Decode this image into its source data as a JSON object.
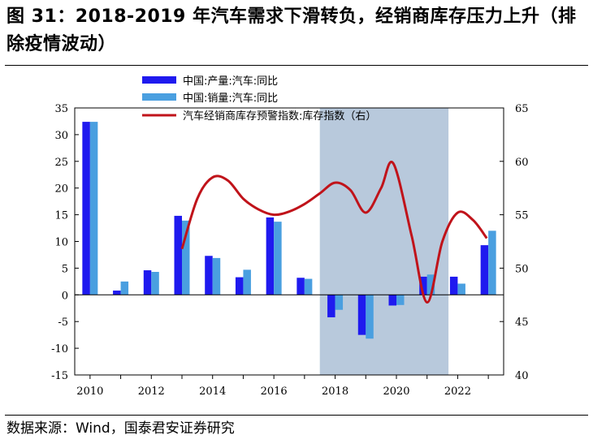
{
  "title": "图 31：2018-2019 年汽车需求下滑转负，经销商库存压力上升（排除疫情波动）",
  "source": "数据来源：Wind，国泰君安证券研究",
  "colors": {
    "production": "#1f1aef",
    "sales": "#4a9fe0",
    "inventory": "#c0131a",
    "shade": "#b8c9dc"
  },
  "chart_data": {
    "type": "bar",
    "categories": [
      "2010",
      "2011",
      "2012",
      "2013",
      "2014",
      "2015",
      "2016",
      "2017",
      "2018",
      "2019",
      "2020",
      "2021",
      "2022",
      "2023"
    ],
    "x_tick_labels": [
      "2010",
      "2012",
      "2014",
      "2016",
      "2018",
      "2020",
      "2022"
    ],
    "left_axis": {
      "ylim": [
        -15,
        35
      ],
      "ticks": [
        "35",
        "30",
        "25",
        "20",
        "15",
        "10",
        "5",
        "0",
        "-5",
        "-10",
        "-15"
      ]
    },
    "right_axis": {
      "ylim": [
        40,
        65
      ],
      "ticks": [
        "65",
        "60",
        "55",
        "50",
        "45",
        "40"
      ]
    },
    "series": [
      {
        "name": "中国:产量:汽车:同比",
        "type": "bar",
        "axis": "left",
        "values": [
          32.4,
          0.8,
          4.6,
          14.8,
          7.3,
          3.3,
          14.5,
          3.2,
          -4.2,
          -7.5,
          -2.0,
          3.4,
          3.4,
          9.3
        ]
      },
      {
        "name": "中国:销量:汽车:同比",
        "type": "bar",
        "axis": "left",
        "values": [
          32.4,
          2.5,
          4.3,
          13.9,
          6.9,
          4.7,
          13.7,
          3.0,
          -2.8,
          -8.2,
          -1.9,
          3.8,
          2.1,
          12.0
        ]
      },
      {
        "name": "汽车经销商库存预警指数:库存指数（右）",
        "type": "line",
        "axis": "right",
        "points": [
          [
            2013.0,
            51.8
          ],
          [
            2013.5,
            56.5
          ],
          [
            2014.0,
            58.5
          ],
          [
            2014.5,
            58.2
          ],
          [
            2015.0,
            56.5
          ],
          [
            2015.5,
            55.5
          ],
          [
            2016.0,
            55.0
          ],
          [
            2016.5,
            55.3
          ],
          [
            2017.0,
            56.0
          ],
          [
            2017.5,
            57.0
          ],
          [
            2018.0,
            58.0
          ],
          [
            2018.5,
            57.3
          ],
          [
            2019.0,
            55.2
          ],
          [
            2019.5,
            57.5
          ],
          [
            2019.9,
            59.8
          ],
          [
            2020.5,
            53.0
          ],
          [
            2021.0,
            46.8
          ],
          [
            2021.5,
            52.5
          ],
          [
            2022.0,
            55.2
          ],
          [
            2022.5,
            54.5
          ],
          [
            2022.95,
            52.8
          ]
        ]
      }
    ],
    "shaded_region": {
      "x_start": 2017.5,
      "x_end": 2021.7
    },
    "legend_position": "top-center"
  }
}
